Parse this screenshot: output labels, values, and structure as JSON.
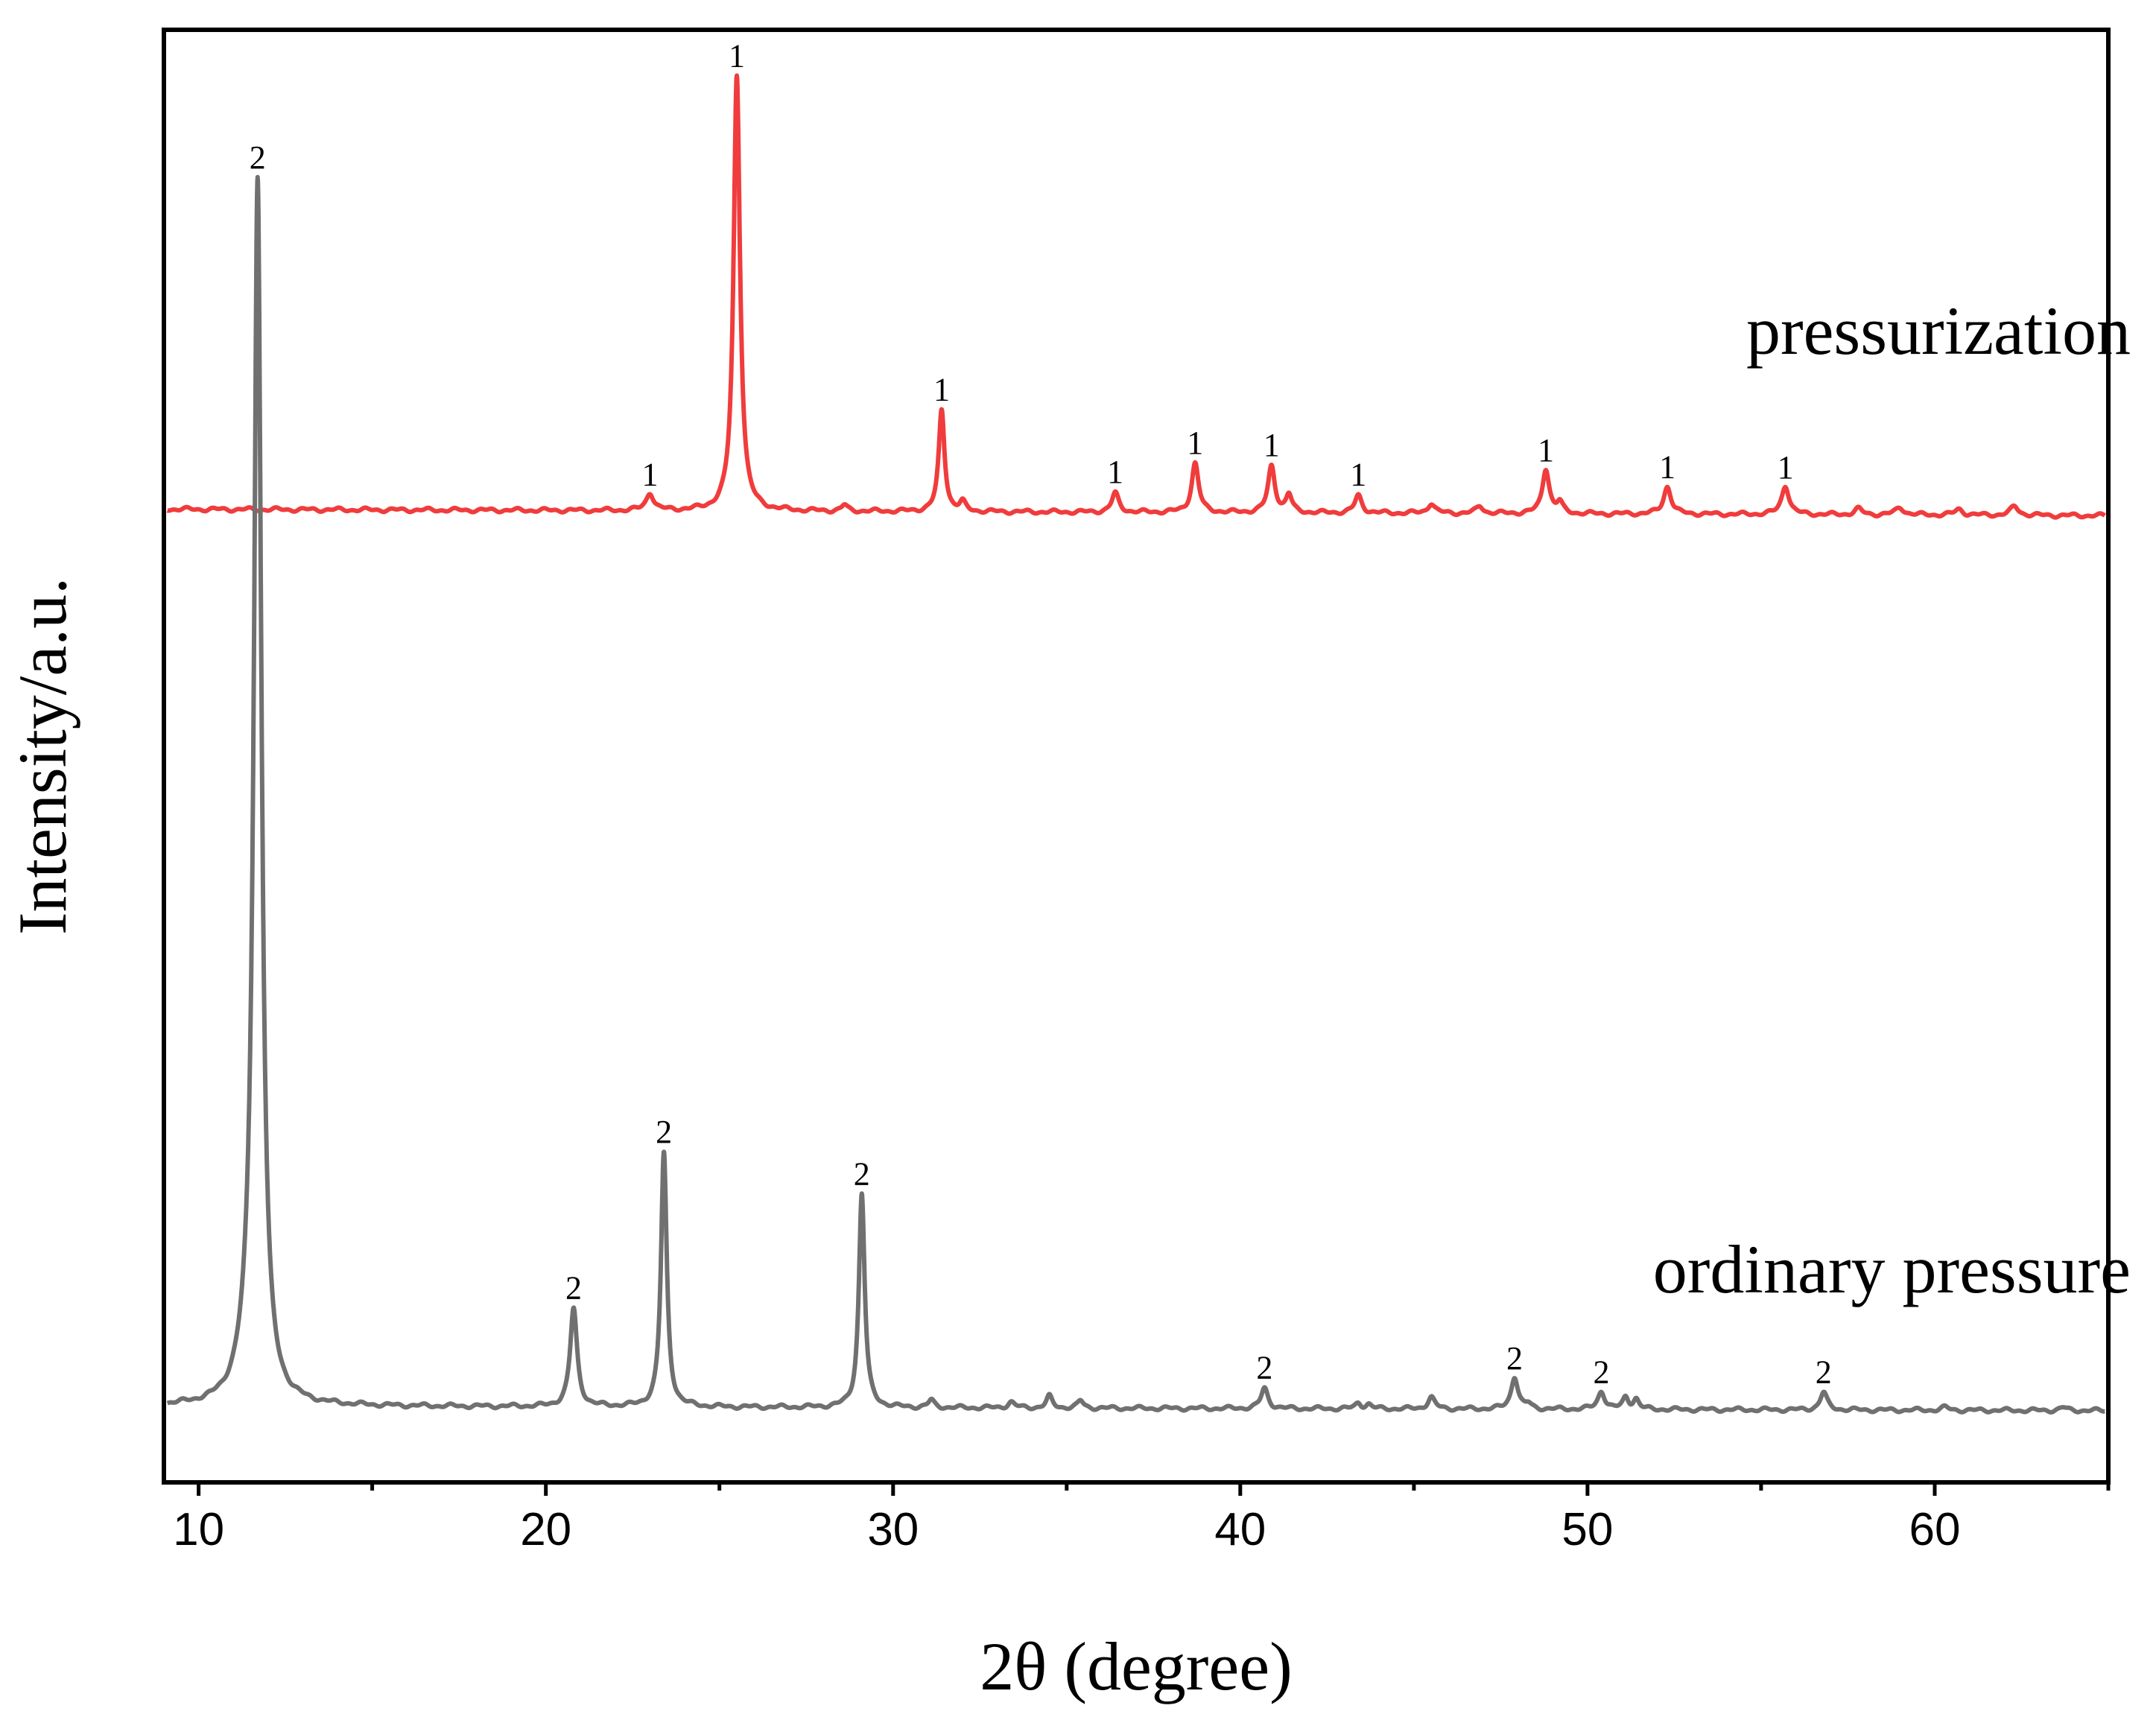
{
  "chart_data": {
    "type": "line",
    "title": "",
    "xlabel": "2θ (degree)",
    "ylabel": "Intensity/a.u.",
    "xlim": [
      9,
      65
    ],
    "ylim": [
      0,
      2.0
    ],
    "x_ticks": [
      "10",
      "20",
      "30",
      "40",
      "50",
      "60"
    ],
    "x_tick_values": [
      10,
      20,
      30,
      40,
      50,
      60
    ],
    "grid": false,
    "colors": {
      "pressurization": "#f03c3c",
      "ordinary": "#707070",
      "axis": "#000000"
    },
    "series": [
      {
        "name": "pressurization",
        "label": "pressurization",
        "baseline": 1.34,
        "baseline_slope": -0.00016,
        "peaks": [
          {
            "x": 23.0,
            "h": 0.024,
            "w": 0.13,
            "tag": "1"
          },
          {
            "x": 25.5,
            "h": 0.6,
            "w": 0.11,
            "tag": "1"
          },
          {
            "x": 28.6,
            "h": 0.008,
            "w": 0.1
          },
          {
            "x": 31.4,
            "h": 0.14,
            "w": 0.1,
            "tag": "1"
          },
          {
            "x": 32.0,
            "h": 0.012,
            "w": 0.1
          },
          {
            "x": 36.4,
            "h": 0.026,
            "w": 0.12,
            "tag": "1"
          },
          {
            "x": 38.7,
            "h": 0.068,
            "w": 0.12,
            "tag": "1"
          },
          {
            "x": 40.9,
            "h": 0.064,
            "w": 0.12,
            "tag": "1"
          },
          {
            "x": 41.4,
            "h": 0.024,
            "w": 0.1
          },
          {
            "x": 43.4,
            "h": 0.024,
            "w": 0.12,
            "tag": "1"
          },
          {
            "x": 45.5,
            "h": 0.014,
            "w": 0.12
          },
          {
            "x": 46.9,
            "h": 0.01,
            "w": 0.12
          },
          {
            "x": 48.8,
            "h": 0.062,
            "w": 0.12,
            "tag": "1"
          },
          {
            "x": 49.2,
            "h": 0.014,
            "w": 0.1
          },
          {
            "x": 52.3,
            "h": 0.038,
            "w": 0.13,
            "tag": "1"
          },
          {
            "x": 55.7,
            "h": 0.04,
            "w": 0.13,
            "tag": "1"
          },
          {
            "x": 57.8,
            "h": 0.008,
            "w": 0.13
          },
          {
            "x": 59.0,
            "h": 0.01,
            "w": 0.15
          },
          {
            "x": 60.7,
            "h": 0.008,
            "w": 0.14
          },
          {
            "x": 62.3,
            "h": 0.012,
            "w": 0.14
          }
        ]
      },
      {
        "name": "ordinary pressure",
        "label": "ordinary pressure",
        "baseline": 0.105,
        "baseline_slope": -0.00011,
        "peaks": [
          {
            "x": 11.7,
            "h": 1.66,
            "w": 0.13,
            "tag": "2"
          },
          {
            "x": 11.45,
            "h": 0.05,
            "w": 0.35
          },
          {
            "x": 20.8,
            "h": 0.135,
            "w": 0.12,
            "tag": "2"
          },
          {
            "x": 23.4,
            "h": 0.35,
            "w": 0.1,
            "tag": "2"
          },
          {
            "x": 29.1,
            "h": 0.295,
            "w": 0.1,
            "tag": "2"
          },
          {
            "x": 31.1,
            "h": 0.01,
            "w": 0.1
          },
          {
            "x": 33.4,
            "h": 0.008,
            "w": 0.12
          },
          {
            "x": 34.5,
            "h": 0.016,
            "w": 0.1
          },
          {
            "x": 35.4,
            "h": 0.01,
            "w": 0.1
          },
          {
            "x": 40.7,
            "h": 0.028,
            "w": 0.12,
            "tag": "2"
          },
          {
            "x": 43.4,
            "h": 0.008,
            "w": 0.1
          },
          {
            "x": 43.7,
            "h": 0.006,
            "w": 0.1
          },
          {
            "x": 45.5,
            "h": 0.016,
            "w": 0.12
          },
          {
            "x": 47.9,
            "h": 0.045,
            "w": 0.12,
            "tag": "2"
          },
          {
            "x": 48.3,
            "h": 0.006,
            "w": 0.1
          },
          {
            "x": 50.4,
            "h": 0.025,
            "w": 0.12,
            "tag": "2"
          },
          {
            "x": 51.1,
            "h": 0.016,
            "w": 0.1
          },
          {
            "x": 51.4,
            "h": 0.014,
            "w": 0.1
          },
          {
            "x": 56.8,
            "h": 0.024,
            "w": 0.12,
            "tag": "2"
          },
          {
            "x": 60.3,
            "h": 0.004,
            "w": 0.12
          },
          {
            "x": 63.7,
            "h": 0.004,
            "w": 0.12
          }
        ]
      }
    ]
  }
}
